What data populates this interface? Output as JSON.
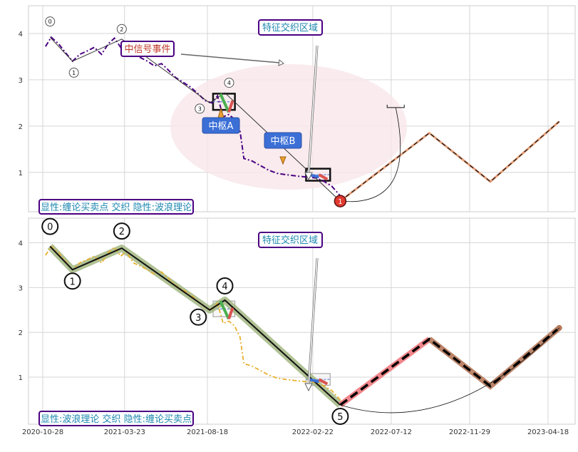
{
  "chart_data": [
    {
      "type": "line",
      "panel": "top",
      "ylim": [
        0.15,
        4.6
      ],
      "yticks": [
        1,
        2,
        3,
        4
      ],
      "grid": true,
      "annotations": {
        "feature_zone": "特征交织区域",
        "signal_event": "中信号事件",
        "zhongshu_a": "中枢A",
        "zhongshu_b": "中枢B",
        "caption": "显性:缠论买卖点 交织 隐性:波浪理论"
      },
      "wave_labels": [
        "0",
        "1",
        "2",
        "3",
        "4"
      ],
      "signal_marker": "1",
      "price_series": [
        [
          "2020-11-02",
          3.72
        ],
        [
          "2020-11-12",
          3.92
        ],
        [
          "2020-11-25",
          3.78
        ],
        [
          "2020-12-08",
          3.58
        ],
        [
          "2020-12-20",
          3.4
        ],
        [
          "2021-01-02",
          3.55
        ],
        [
          "2021-01-15",
          3.62
        ],
        [
          "2021-01-28",
          3.7
        ],
        [
          "2021-02-10",
          3.55
        ],
        [
          "2021-02-22",
          3.78
        ],
        [
          "2021-03-05",
          3.9
        ],
        [
          "2021-03-16",
          3.7
        ],
        [
          "2021-03-26",
          3.8
        ],
        [
          "2021-04-08",
          3.55
        ],
        [
          "2021-04-20",
          3.48
        ],
        [
          "2021-05-03",
          3.4
        ],
        [
          "2021-05-15",
          3.3
        ],
        [
          "2021-05-28",
          3.35
        ],
        [
          "2021-06-10",
          3.2
        ],
        [
          "2021-06-22",
          3.05
        ],
        [
          "2021-07-05",
          2.95
        ],
        [
          "2021-07-18",
          2.85
        ],
        [
          "2021-08-01",
          2.7
        ],
        [
          "2021-08-14",
          2.55
        ],
        [
          "2021-08-26",
          2.5
        ],
        [
          "2021-09-05",
          2.65
        ],
        [
          "2021-09-15",
          2.2
        ],
        [
          "2021-09-25",
          2.25
        ],
        [
          "2021-10-05",
          2.15
        ],
        [
          "2021-10-15",
          1.9
        ],
        [
          "2021-10-22",
          1.3
        ],
        [
          "2021-11-05",
          1.25
        ],
        [
          "2021-11-20",
          1.15
        ],
        [
          "2021-12-05",
          1.05
        ],
        [
          "2021-12-20",
          0.98
        ],
        [
          "2022-01-05",
          0.95
        ],
        [
          "2022-01-25",
          0.92
        ],
        [
          "2022-02-10",
          0.9
        ],
        [
          "2022-02-28",
          0.88
        ],
        [
          "2022-03-15",
          0.8
        ],
        [
          "2022-03-28",
          0.7
        ],
        [
          "2022-04-08",
          0.55
        ],
        [
          "2022-04-15",
          0.45
        ]
      ],
      "wave_path": [
        [
          "2020-11-10",
          3.92
        ],
        [
          "2020-12-20",
          3.4
        ],
        [
          "2021-03-18",
          3.88
        ],
        [
          "2021-08-22",
          2.5
        ],
        [
          "2021-09-18",
          2.72
        ],
        [
          "2022-04-12",
          0.38
        ]
      ],
      "zhongshu_boxes": [
        {
          "x0": "2021-08-28",
          "x1": "2021-10-06",
          "y0": 2.35,
          "y1": 2.7
        },
        {
          "x0": "2022-02-10",
          "x1": "2022-03-25",
          "y0": 0.82,
          "y1": 1.08
        }
      ],
      "projection": [
        [
          "2022-04-12",
          0.38
        ],
        [
          "2022-09-18",
          1.85
        ],
        [
          "2023-01-05",
          0.8
        ],
        [
          "2023-05-08",
          2.1
        ]
      ]
    },
    {
      "type": "line",
      "panel": "bottom",
      "ylim": [
        -0.05,
        4.55
      ],
      "yticks": [
        1,
        2,
        3,
        4
      ],
      "grid": true,
      "annotations": {
        "feature_zone": "特征交织区域",
        "caption": "显性:波浪理论 交织 隐性:缠论买卖点"
      },
      "wave_labels": [
        "0",
        "1",
        "2",
        "3",
        "4",
        "5"
      ],
      "xticks": [
        "2020-10-28",
        "2021-03-23",
        "2021-08-18",
        "2022-02-22",
        "2022-07-12",
        "2022-11-29",
        "2023-04-18"
      ],
      "price_series": [
        [
          "2020-11-02",
          3.72
        ],
        [
          "2020-11-12",
          3.92
        ],
        [
          "2020-11-25",
          3.78
        ],
        [
          "2020-12-08",
          3.58
        ],
        [
          "2020-12-20",
          3.4
        ],
        [
          "2021-01-02",
          3.55
        ],
        [
          "2021-01-15",
          3.62
        ],
        [
          "2021-01-28",
          3.7
        ],
        [
          "2021-02-10",
          3.55
        ],
        [
          "2021-02-22",
          3.78
        ],
        [
          "2021-03-05",
          3.9
        ],
        [
          "2021-03-16",
          3.7
        ],
        [
          "2021-03-26",
          3.8
        ],
        [
          "2021-04-08",
          3.55
        ],
        [
          "2021-04-20",
          3.48
        ],
        [
          "2021-05-03",
          3.4
        ],
        [
          "2021-05-15",
          3.3
        ],
        [
          "2021-05-28",
          3.35
        ],
        [
          "2021-06-10",
          3.2
        ],
        [
          "2021-06-22",
          3.05
        ],
        [
          "2021-07-05",
          2.95
        ],
        [
          "2021-07-18",
          2.85
        ],
        [
          "2021-08-01",
          2.7
        ],
        [
          "2021-08-14",
          2.55
        ],
        [
          "2021-08-26",
          2.5
        ],
        [
          "2021-09-05",
          2.65
        ],
        [
          "2021-09-15",
          2.2
        ],
        [
          "2021-09-25",
          2.25
        ],
        [
          "2021-10-05",
          2.15
        ],
        [
          "2021-10-15",
          1.9
        ],
        [
          "2021-10-22",
          1.3
        ],
        [
          "2021-11-05",
          1.25
        ],
        [
          "2021-11-20",
          1.15
        ],
        [
          "2021-12-05",
          1.05
        ],
        [
          "2021-12-20",
          0.98
        ],
        [
          "2022-01-05",
          0.95
        ],
        [
          "2022-01-25",
          0.92
        ],
        [
          "2022-02-10",
          0.9
        ],
        [
          "2022-02-28",
          0.88
        ],
        [
          "2022-03-15",
          0.8
        ],
        [
          "2022-03-28",
          0.7
        ],
        [
          "2022-04-08",
          0.55
        ],
        [
          "2022-04-15",
          0.45
        ]
      ],
      "wave_path": [
        [
          "2020-11-10",
          3.92
        ],
        [
          "2020-12-20",
          3.4
        ],
        [
          "2021-03-18",
          3.88
        ],
        [
          "2021-08-22",
          2.5
        ],
        [
          "2021-09-18",
          2.72
        ],
        [
          "2022-04-12",
          0.38
        ]
      ],
      "zhongshu_boxes": [
        {
          "x0": "2021-08-28",
          "x1": "2021-10-06",
          "y0": 2.35,
          "y1": 2.7
        },
        {
          "x0": "2022-02-10",
          "x1": "2022-03-25",
          "y0": 0.82,
          "y1": 1.08
        }
      ],
      "projection": [
        [
          "2022-04-12",
          0.38
        ],
        [
          "2022-09-18",
          1.85
        ],
        [
          "2023-01-05",
          0.8
        ],
        [
          "2023-05-08",
          2.1
        ]
      ]
    }
  ],
  "colors": {
    "price_top": "#4b0082",
    "price_bottom": "#e8b030",
    "zone_fill": "#f8e6ea",
    "label_border": "#4b0082",
    "label_text_blue": "#1e88b0",
    "label_text_red": "#c0392b",
    "zhongshu_fill": "#3b6fd6",
    "marker_red": "#e03a2f",
    "projection_top": "#e8a07a",
    "projection_bottom_a": "#f07a80",
    "projection_bottom_b": "#b5785a",
    "wave_band": "#9eb37a"
  }
}
